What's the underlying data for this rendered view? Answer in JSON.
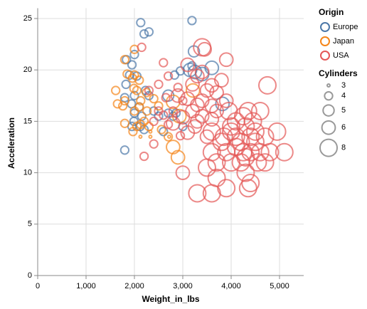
{
  "chart_data": {
    "type": "scatter",
    "x_label": "Weight_in_lbs",
    "y_label": "Acceleration",
    "xlim": [
      0,
      5500
    ],
    "ylim": [
      0,
      26
    ],
    "xticks": [
      0,
      {
        "value": 1000,
        "label": "1,000"
      },
      {
        "value": 2000,
        "label": "2,000"
      },
      {
        "value": 3000,
        "label": "3,000"
      },
      {
        "value": 4000,
        "label": "4,000"
      },
      {
        "value": 5000,
        "label": "5,000"
      }
    ],
    "yticks": [
      0,
      5,
      10,
      15,
      20,
      25
    ],
    "grid": true,
    "legend": "right",
    "legend_title": "Origin",
    "size_legend_title": "Cylinders",
    "size_legend_values": [
      3,
      4,
      5,
      6,
      8
    ],
    "series": [
      {
        "name": "Europe",
        "color": "#4c78a8",
        "x": [
          2130,
          3190,
          2200,
          2300,
          1835,
          2000,
          1950,
          1900,
          2050,
          1825,
          2230,
          2000,
          1800,
          1940,
          2100,
          2150,
          1990,
          2700,
          2600,
          2200,
          1800,
          1950,
          2400,
          2800,
          3000,
          3230,
          3150,
          3400,
          3600,
          3820,
          2950,
          2500,
          3190,
          2830,
          3250,
          2860,
          2700,
          2300,
          2000,
          2120
        ],
        "values": [
          24.6,
          24.8,
          23.5,
          23.7,
          21,
          21.5,
          20.5,
          19.5,
          19.4,
          18.6,
          18,
          17.5,
          17.3,
          16.7,
          16.4,
          15.5,
          15,
          15.8,
          14,
          14.2,
          12.2,
          14.5,
          16,
          15.5,
          14.5,
          21.8,
          20,
          19.6,
          20.2,
          16.7,
          19.9,
          15.5,
          20.4,
          19.5,
          19.8,
          15.8,
          17.5,
          17.5,
          15.8,
          14.5
        ],
        "sizes": [
          4,
          4,
          4,
          4,
          4,
          4,
          4,
          4,
          4,
          4,
          4,
          4,
          4,
          4,
          4,
          4,
          4,
          4,
          4,
          4,
          4,
          4,
          4,
          4,
          4,
          5,
          6,
          6,
          6,
          6,
          4,
          4,
          4,
          4,
          6,
          4,
          5,
          4,
          4,
          4
        ]
      },
      {
        "name": "Japan",
        "color": "#f58518",
        "x": [
          1800,
          1850,
          1960,
          2050,
          2100,
          1990,
          1800,
          1613,
          1760,
          1650,
          2000,
          2100,
          2200,
          2300,
          1970,
          2125,
          2260,
          2500,
          2560,
          2700,
          2330,
          2124,
          2720,
          2330,
          2900,
          2800,
          2930,
          2800,
          3210,
          2000,
          2130,
          2250,
          2000,
          2050,
          2400,
          1800
        ],
        "values": [
          21,
          19.6,
          19.2,
          18,
          19,
          18.2,
          17,
          18,
          16.5,
          16.7,
          16,
          16.4,
          15,
          14.5,
          14,
          14.7,
          16,
          16.5,
          14.2,
          13.5,
          13.5,
          13.5,
          13.5,
          14,
          11.5,
          16.9,
          15.5,
          12.5,
          18,
          19.5,
          17,
          17.8,
          22,
          14.5,
          17.2,
          14.8
        ],
        "sizes": [
          4,
          4,
          4,
          4,
          4,
          4,
          4,
          4,
          4,
          4,
          4,
          4,
          4,
          4,
          4,
          4,
          4,
          4,
          4,
          4,
          3,
          3,
          3,
          3,
          6,
          6,
          6,
          6,
          6,
          4,
          4,
          4,
          4,
          4,
          4,
          4
        ]
      },
      {
        "name": "USA",
        "color": "#e45756",
        "x": [
          2150,
          2600,
          2300,
          2400,
          2500,
          2700,
          2650,
          2200,
          2400,
          2800,
          2900,
          3000,
          2950,
          2600,
          2700,
          2500,
          3100,
          3300,
          3400,
          3200,
          3500,
          3600,
          3000,
          3300,
          3100,
          3600,
          3400,
          3700,
          2900,
          3250,
          3500,
          3900,
          3800,
          3450,
          3000,
          3900,
          3300,
          2800,
          3100,
          3700,
          3400,
          3200,
          3600,
          3400,
          3600,
          3700,
          3800,
          3900,
          4000,
          4100,
          4200,
          4300,
          4400,
          4500,
          4600,
          4700,
          4800,
          4950,
          5100,
          4300,
          4400,
          4350,
          3600,
          3300,
          3900,
          4000,
          4100,
          4250,
          4350,
          4500,
          4600,
          4750,
          4200,
          4100,
          3700,
          3500,
          4400,
          4700,
          4000,
          3850,
          4250,
          4550,
          3600,
          4300,
          3950,
          4450
        ],
        "values": [
          22.2,
          20.7,
          18,
          15,
          16,
          19.4,
          17.3,
          11.6,
          12.8,
          16,
          18.3,
          17,
          13.6,
          15.6,
          14.7,
          18.6,
          20.5,
          19.4,
          17,
          16,
          18,
          18.5,
          15.4,
          15,
          17.2,
          16.5,
          15.5,
          17.8,
          17.5,
          14.5,
          13.5,
          21,
          19,
          22,
          10,
          17,
          16.6,
          14.8,
          13.9,
          16,
          19.8,
          18.6,
          15.2,
          22.2,
          12,
          11,
          13,
          12,
          14,
          12.5,
          13,
          11.5,
          12,
          13,
          12,
          11,
          12,
          14,
          12,
          10,
          9,
          8.5,
          8,
          8,
          8.5,
          14.5,
          15,
          15.5,
          16,
          14,
          16,
          18.5,
          11,
          13.5,
          9.5,
          10.5,
          13.5,
          13.5,
          11,
          13.5,
          12,
          11,
          14,
          14.5,
          16,
          15
        ],
        "sizes": [
          4,
          4,
          4,
          4,
          4,
          4,
          4,
          4,
          4,
          4,
          4,
          4,
          4,
          4,
          4,
          4,
          6,
          6,
          6,
          6,
          6,
          6,
          6,
          6,
          6,
          6,
          6,
          6,
          6,
          6,
          6,
          6,
          6,
          6,
          6,
          6,
          6,
          6,
          6,
          6,
          6,
          6,
          6,
          8,
          8,
          8,
          8,
          8,
          8,
          8,
          8,
          8,
          8,
          8,
          8,
          8,
          8,
          8,
          8,
          8,
          8,
          8,
          8,
          8,
          8,
          8,
          8,
          8,
          8,
          8,
          8,
          8,
          8,
          8,
          8,
          8,
          8,
          8,
          8,
          8,
          8,
          8,
          8,
          8,
          8,
          8
        ]
      }
    ]
  }
}
